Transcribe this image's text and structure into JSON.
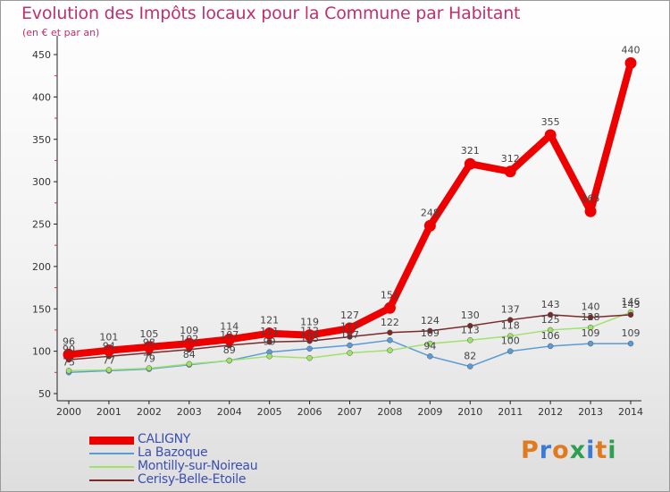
{
  "title": "Evolution des Impôts locaux pour la Commune par Habitant",
  "subtitle": "(en € et par an)",
  "logo": {
    "text": "Proxiti",
    "letters": [
      "P",
      "r",
      "o",
      "x",
      "i",
      "t",
      "i"
    ],
    "colors": [
      "#e07a1f",
      "#3a7bd5",
      "#e07a1f",
      "#2e9e4f",
      "#3a7bd5",
      "#e07a1f",
      "#2e9e4f"
    ]
  },
  "chart_data": {
    "type": "line",
    "title": "Evolution des Impôts locaux pour la Commune par Habitant",
    "subtitle": "(en € et par an)",
    "xlabel": "",
    "ylabel": "",
    "categories": [
      "2000",
      "2001",
      "2002",
      "2003",
      "2004",
      "2005",
      "2006",
      "2007",
      "2008",
      "2009",
      "2010",
      "2011",
      "2012",
      "2013",
      "2014"
    ],
    "y_ticks": [
      50,
      100,
      150,
      200,
      250,
      300,
      350,
      400,
      450
    ],
    "ylim": [
      50,
      450
    ],
    "grid": false,
    "legend_position": "bottom-left",
    "series": [
      {
        "name": "CALIGNY",
        "color": "#ee0000",
        "emphasis": true,
        "values": [
          96,
          101,
          105,
          109,
          114,
          121,
          119,
          127,
          151,
          248,
          321,
          312,
          355,
          265,
          440
        ]
      },
      {
        "name": "La Bazoque",
        "color": "#5b9bd5",
        "emphasis": false,
        "values": [
          75,
          77,
          79,
          84,
          89,
          99,
          103,
          107,
          113,
          94,
          82,
          100,
          106,
          109,
          109
        ]
      },
      {
        "name": "Montilly-sur-Noireau",
        "color": "#9ee26a",
        "emphasis": false,
        "values": [
          77,
          78,
          80,
          85,
          89,
          94,
          92,
          98,
          101,
          109,
          113,
          118,
          125,
          128,
          146
        ]
      },
      {
        "name": "Cerisy-Belle-Etoile",
        "color": "#7a2a2a",
        "emphasis": false,
        "values": [
          90,
          94,
          98,
          102,
          107,
          111,
          112,
          117,
          122,
          124,
          130,
          137,
          143,
          140,
          143
        ]
      }
    ],
    "data_labels": [
      {
        "series": 0,
        "index": 0,
        "text": "96"
      },
      {
        "series": 0,
        "index": 1,
        "text": "101"
      },
      {
        "series": 0,
        "index": 2,
        "text": "105"
      },
      {
        "series": 0,
        "index": 3,
        "text": "109"
      },
      {
        "series": 0,
        "index": 4,
        "text": "114"
      },
      {
        "series": 0,
        "index": 5,
        "text": "121"
      },
      {
        "series": 0,
        "index": 6,
        "text": "119"
      },
      {
        "series": 0,
        "index": 7,
        "text": "127"
      },
      {
        "series": 0,
        "index": 8,
        "text": "151"
      },
      {
        "series": 0,
        "index": 9,
        "text": "248"
      },
      {
        "series": 0,
        "index": 10,
        "text": "321"
      },
      {
        "series": 0,
        "index": 11,
        "text": "312"
      },
      {
        "series": 0,
        "index": 12,
        "text": "355"
      },
      {
        "series": 0,
        "index": 13,
        "text": "265"
      },
      {
        "series": 0,
        "index": 14,
        "text": "440"
      },
      {
        "series": 3,
        "index": 8,
        "text": "122"
      },
      {
        "series": 3,
        "index": 9,
        "text": "124"
      },
      {
        "series": 3,
        "index": 10,
        "text": "130"
      },
      {
        "series": 3,
        "index": 11,
        "text": "137"
      },
      {
        "series": 3,
        "index": 12,
        "text": "143"
      },
      {
        "series": 3,
        "index": 13,
        "text": "140"
      },
      {
        "series": 3,
        "index": 14,
        "text": "143"
      },
      {
        "series": 2,
        "index": 14,
        "text": "146"
      },
      {
        "series": 2,
        "index": 9,
        "text": "109"
      },
      {
        "series": 2,
        "index": 10,
        "text": "113"
      },
      {
        "series": 2,
        "index": 11,
        "text": "118"
      },
      {
        "series": 2,
        "index": 12,
        "text": "125"
      },
      {
        "series": 2,
        "index": 13,
        "text": "128"
      },
      {
        "series": 1,
        "index": 9,
        "text": "94"
      },
      {
        "series": 1,
        "index": 10,
        "text": "82"
      },
      {
        "series": 1,
        "index": 11,
        "text": "100"
      },
      {
        "series": 1,
        "index": 12,
        "text": "106"
      },
      {
        "series": 1,
        "index": 13,
        "text": "109"
      },
      {
        "series": 1,
        "index": 14,
        "text": "109"
      },
      {
        "series": 3,
        "index": 0,
        "text": "90"
      },
      {
        "series": 3,
        "index": 1,
        "text": "94"
      },
      {
        "series": 3,
        "index": 2,
        "text": "98"
      },
      {
        "series": 3,
        "index": 3,
        "text": "102"
      },
      {
        "series": 3,
        "index": 4,
        "text": "107"
      },
      {
        "series": 3,
        "index": 5,
        "text": "111"
      },
      {
        "series": 3,
        "index": 6,
        "text": "112"
      },
      {
        "series": 3,
        "index": 7,
        "text": "117"
      },
      {
        "series": 1,
        "index": 0,
        "text": "75"
      },
      {
        "series": 1,
        "index": 1,
        "text": "77"
      },
      {
        "series": 1,
        "index": 2,
        "text": "79"
      },
      {
        "series": 1,
        "index": 3,
        "text": "84"
      },
      {
        "series": 1,
        "index": 4,
        "text": "89"
      },
      {
        "series": 1,
        "index": 5,
        "text": "99"
      },
      {
        "series": 1,
        "index": 6,
        "text": "103"
      },
      {
        "series": 1,
        "index": 7,
        "text": "107"
      }
    ]
  }
}
